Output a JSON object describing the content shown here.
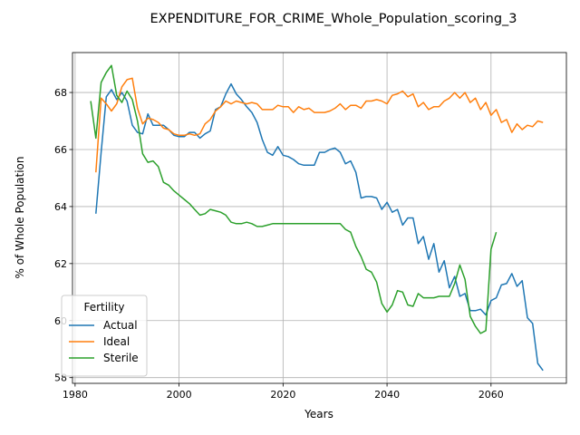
{
  "chart_data": {
    "type": "line",
    "title": "EXPENDITURE_FOR_CRIME_Whole_Population_scoring_3",
    "xlabel": "Years",
    "ylabel": "% of Whole Population",
    "xlim": [
      1979.5,
      2074.5
    ],
    "ylim": [
      57.8,
      69.4
    ],
    "xticks": [
      1980,
      2000,
      2020,
      2040,
      2060
    ],
    "yticks": [
      58,
      60,
      62,
      64,
      66,
      68
    ],
    "grid": true,
    "legend": {
      "title": "Fertility",
      "placement": "lower-left"
    },
    "series": [
      {
        "name": "Actual",
        "color": "#1f77b4",
        "x": [
          1984,
          1985,
          1986,
          1987,
          1988,
          1989,
          1990,
          1991,
          1992,
          1993,
          1994,
          1995,
          1996,
          1997,
          1998,
          1999,
          2000,
          2001,
          2002,
          2003,
          2004,
          2005,
          2006,
          2007,
          2008,
          2009,
          2010,
          2011,
          2012,
          2013,
          2014,
          2015,
          2016,
          2017,
          2018,
          2019,
          2020,
          2021,
          2022,
          2023,
          2024,
          2025,
          2026,
          2027,
          2028,
          2029,
          2030,
          2031,
          2032,
          2033,
          2034,
          2035,
          2036,
          2037,
          2038,
          2039,
          2040,
          2041,
          2042,
          2043,
          2044,
          2045,
          2046,
          2047,
          2048,
          2049,
          2050,
          2051,
          2052,
          2053,
          2054,
          2055,
          2056,
          2057,
          2058,
          2059,
          2060,
          2061,
          2062,
          2063,
          2064,
          2065,
          2066,
          2067,
          2068,
          2069,
          2070
        ],
        "values": [
          63.75,
          65.9,
          67.85,
          68.1,
          67.75,
          68.0,
          67.7,
          66.85,
          66.6,
          66.55,
          67.25,
          66.85,
          66.85,
          66.85,
          66.7,
          66.5,
          66.45,
          66.45,
          66.6,
          66.6,
          66.4,
          66.55,
          66.65,
          67.4,
          67.5,
          67.95,
          68.3,
          67.95,
          67.75,
          67.5,
          67.3,
          66.95,
          66.35,
          65.9,
          65.8,
          66.1,
          65.8,
          65.75,
          65.65,
          65.5,
          65.45,
          65.45,
          65.45,
          65.9,
          65.9,
          66.0,
          66.05,
          65.9,
          65.5,
          65.6,
          65.2,
          64.3,
          64.35,
          64.35,
          64.3,
          63.9,
          64.15,
          63.8,
          63.9,
          63.35,
          63.6,
          63.6,
          62.7,
          62.95,
          62.15,
          62.7,
          61.7,
          62.1,
          61.15,
          61.55,
          60.85,
          60.95,
          60.35,
          60.35,
          60.4,
          60.2,
          60.7,
          60.8,
          61.25,
          61.3,
          61.65,
          61.2,
          61.4,
          60.1,
          59.9,
          58.5,
          58.25
        ]
      },
      {
        "name": "Ideal",
        "color": "#ff7f0e",
        "x": [
          1984,
          1985,
          1986,
          1987,
          1988,
          1989,
          1990,
          1991,
          1992,
          1993,
          1994,
          1995,
          1996,
          1997,
          1998,
          1999,
          2000,
          2001,
          2002,
          2003,
          2004,
          2005,
          2006,
          2007,
          2008,
          2009,
          2010,
          2011,
          2012,
          2013,
          2014,
          2015,
          2016,
          2017,
          2018,
          2019,
          2020,
          2021,
          2022,
          2023,
          2024,
          2025,
          2026,
          2027,
          2028,
          2029,
          2030,
          2031,
          2032,
          2033,
          2034,
          2035,
          2036,
          2037,
          2038,
          2039,
          2040,
          2041,
          2042,
          2043,
          2044,
          2045,
          2046,
          2047,
          2048,
          2049,
          2050,
          2051,
          2052,
          2053,
          2054,
          2055,
          2056,
          2057,
          2058,
          2059,
          2060,
          2061,
          2062,
          2063,
          2064,
          2065,
          2066,
          2067,
          2068,
          2069,
          2070
        ],
        "values": [
          65.2,
          67.8,
          67.6,
          67.35,
          67.6,
          68.2,
          68.45,
          68.5,
          67.45,
          66.9,
          67.1,
          67.05,
          66.95,
          66.75,
          66.7,
          66.55,
          66.5,
          66.5,
          66.55,
          66.5,
          66.55,
          66.9,
          67.05,
          67.35,
          67.5,
          67.7,
          67.6,
          67.7,
          67.65,
          67.6,
          67.65,
          67.6,
          67.4,
          67.4,
          67.4,
          67.55,
          67.5,
          67.5,
          67.3,
          67.5,
          67.4,
          67.45,
          67.3,
          67.3,
          67.3,
          67.35,
          67.45,
          67.6,
          67.4,
          67.55,
          67.55,
          67.45,
          67.7,
          67.7,
          67.75,
          67.7,
          67.6,
          67.9,
          67.95,
          68.05,
          67.85,
          67.95,
          67.5,
          67.65,
          67.4,
          67.5,
          67.5,
          67.7,
          67.8,
          68.0,
          67.8,
          68.0,
          67.65,
          67.8,
          67.4,
          67.65,
          67.2,
          67.4,
          66.95,
          67.05,
          66.6,
          66.9,
          66.7,
          66.85,
          66.8,
          67.0,
          66.95
        ]
      },
      {
        "name": "Sterile",
        "color": "#2ca02c",
        "x": [
          1983,
          1984,
          1985,
          1986,
          1987,
          1988,
          1989,
          1990,
          1991,
          1992,
          1993,
          1994,
          1995,
          1996,
          1997,
          1998,
          1999,
          2000,
          2001,
          2002,
          2003,
          2004,
          2005,
          2006,
          2007,
          2008,
          2009,
          2010,
          2011,
          2012,
          2013,
          2014,
          2015,
          2016,
          2017,
          2018,
          2019,
          2020,
          2021,
          2022,
          2023,
          2024,
          2025,
          2026,
          2027,
          2028,
          2029,
          2030,
          2031,
          2032,
          2033,
          2034,
          2035,
          2036,
          2037,
          2038,
          2039,
          2040,
          2041,
          2042,
          2043,
          2044,
          2045,
          2046,
          2047,
          2048,
          2049,
          2050,
          2051,
          2052,
          2053,
          2054,
          2055,
          2056,
          2057,
          2058,
          2059,
          2060,
          2061
        ],
        "values": [
          67.7,
          66.4,
          68.35,
          68.7,
          68.95,
          67.9,
          67.65,
          68.05,
          67.75,
          67.0,
          65.85,
          65.55,
          65.6,
          65.4,
          64.85,
          64.75,
          64.55,
          64.4,
          64.25,
          64.1,
          63.9,
          63.7,
          63.75,
          63.9,
          63.85,
          63.8,
          63.7,
          63.45,
          63.4,
          63.4,
          63.45,
          63.4,
          63.3,
          63.3,
          63.35,
          63.4,
          63.4,
          63.4,
          63.4,
          63.4,
          63.4,
          63.4,
          63.4,
          63.4,
          63.4,
          63.4,
          63.4,
          63.4,
          63.4,
          63.2,
          63.1,
          62.6,
          62.25,
          61.8,
          61.7,
          61.35,
          60.6,
          60.3,
          60.55,
          61.05,
          61.0,
          60.55,
          60.5,
          60.95,
          60.8,
          60.8,
          60.8,
          60.85,
          60.85,
          60.85,
          61.3,
          61.95,
          61.45,
          60.15,
          59.8,
          59.55,
          59.65,
          62.5,
          63.1
        ]
      }
    ]
  }
}
